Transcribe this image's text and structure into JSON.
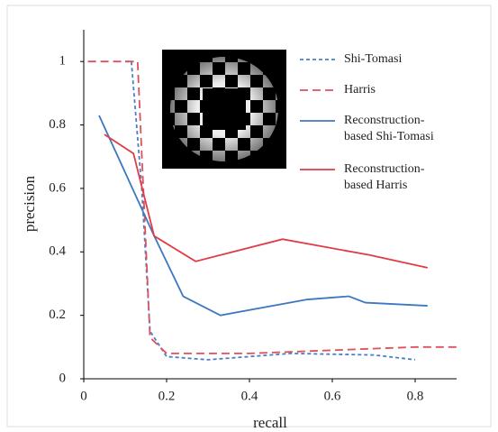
{
  "chart_data": {
    "type": "line",
    "x_label": "recall",
    "y_label": "precision",
    "xlim": [
      0,
      0.9
    ],
    "ylim": [
      0,
      1.1
    ],
    "xticks": [
      0,
      0.2,
      0.4,
      0.6,
      0.8
    ],
    "yticks": [
      0,
      0.2,
      0.4,
      0.6,
      0.8,
      1
    ],
    "series": [
      {
        "name": "Shi-Tomasi",
        "color": "#4a7ec8",
        "dash": true,
        "x": [
          0.1,
          0.115,
          0.14,
          0.16,
          0.2,
          0.3,
          0.5,
          0.7,
          0.8
        ],
        "values": [
          1,
          1,
          0.6,
          0.15,
          0.07,
          0.06,
          0.08,
          0.075,
          0.06
        ]
      },
      {
        "name": "Harris",
        "color": "#e0505a",
        "dash": true,
        "x": [
          0.01,
          0.13,
          0.16,
          0.2,
          0.4,
          0.6,
          0.8,
          0.9
        ],
        "values": [
          1,
          1,
          0.13,
          0.08,
          0.08,
          0.09,
          0.1,
          0.1
        ]
      },
      {
        "name": "Reconstruction-based Shi-Tomasi",
        "color": "#3d78c0",
        "dash": false,
        "x": [
          0.037,
          0.17,
          0.24,
          0.33,
          0.54,
          0.64,
          0.68,
          0.83
        ],
        "values": [
          0.83,
          0.45,
          0.26,
          0.2,
          0.25,
          0.26,
          0.24,
          0.23
        ]
      },
      {
        "name": "Reconstruction-based Harris",
        "color": "#e03c46",
        "dash": false,
        "x": [
          0.05,
          0.12,
          0.17,
          0.27,
          0.48,
          0.69,
          0.83
        ],
        "values": [
          0.77,
          0.71,
          0.45,
          0.37,
          0.44,
          0.39,
          0.35
        ]
      }
    ]
  }
}
